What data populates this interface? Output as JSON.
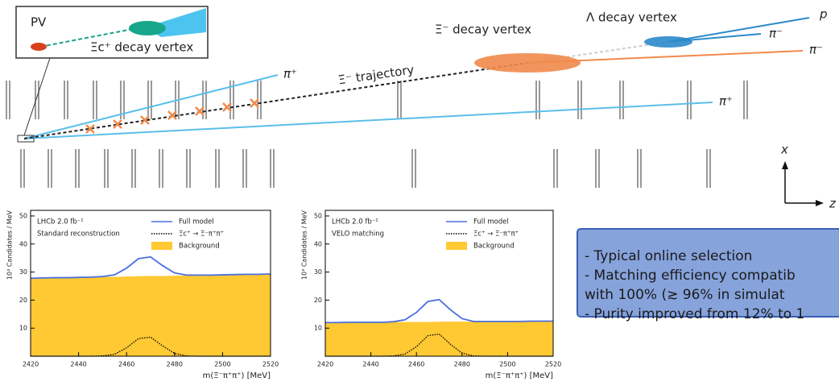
{
  "diagram": {
    "labels": {
      "pv": "PV",
      "xic_vertex": "Ξc⁺ decay vertex",
      "pi_plus_1": "π⁺",
      "pi_plus_2": "π⁺",
      "xi_trajectory": "Ξ⁻ trajectory",
      "xi_vertex": "Ξ⁻ decay vertex",
      "lambda_vertex": "Λ decay vertex",
      "proton": "p",
      "pi_minus_1": "π⁻",
      "pi_minus_2": "π⁻",
      "axis_x": "x",
      "axis_z": "z"
    }
  },
  "chart_data": [
    {
      "type": "line",
      "annotation": [
        "LHCb 2.0 fb⁻¹",
        "Standard reconstruction"
      ],
      "x_label": "m(Ξ⁻π⁺π⁺) [MeV]",
      "y_label": "10³ Candidates / MeV",
      "x": [
        2420,
        2425,
        2430,
        2435,
        2440,
        2445,
        2450,
        2455,
        2460,
        2465,
        2470,
        2475,
        2480,
        2485,
        2490,
        2495,
        2500,
        2505,
        2510,
        2515,
        2520
      ],
      "series": [
        {
          "name": "Background",
          "color": "#ffc933",
          "style": "area",
          "values": [
            27.8,
            27.9,
            28.0,
            28.0,
            28.1,
            28.2,
            28.3,
            28.3,
            28.4,
            28.5,
            28.6,
            28.6,
            28.7,
            28.8,
            28.9,
            28.9,
            29.0,
            29.1,
            29.2,
            29.2,
            29.3
          ]
        },
        {
          "name": "Ξc⁺ → Ξ⁻π⁺π⁺",
          "color": "#000000",
          "style": "dotted",
          "values": [
            0,
            0,
            0,
            0,
            0,
            0,
            0.1,
            0.7,
            3.0,
            6.3,
            6.8,
            3.7,
            1.0,
            0.1,
            0,
            0,
            0,
            0,
            0,
            0,
            0
          ]
        },
        {
          "name": "Full model",
          "color": "#4a6fe0",
          "style": "line",
          "values": [
            27.8,
            27.9,
            28.0,
            28.0,
            28.1,
            28.2,
            28.4,
            29.0,
            31.4,
            34.8,
            35.4,
            32.3,
            29.7,
            28.9,
            28.9,
            28.9,
            29.0,
            29.1,
            29.2,
            29.2,
            29.3
          ]
        }
      ],
      "legend_order": [
        2,
        1,
        0
      ],
      "xlim": [
        2420,
        2520
      ],
      "xticks": [
        2420,
        2440,
        2460,
        2480,
        2500,
        2520
      ],
      "ylim": [
        0,
        52
      ],
      "yticks": [
        10,
        20,
        30,
        40,
        50
      ]
    },
    {
      "type": "line",
      "annotation": [
        "LHCb 2.0 fb⁻¹",
        "VELO matching"
      ],
      "x_label": "m(Ξ⁻π⁺π⁺) [MeV]",
      "y_label": "10³ Candidates / MeV",
      "x": [
        2420,
        2425,
        2430,
        2435,
        2440,
        2445,
        2450,
        2455,
        2460,
        2465,
        2470,
        2475,
        2480,
        2485,
        2490,
        2495,
        2500,
        2505,
        2510,
        2515,
        2520
      ],
      "series": [
        {
          "name": "Background",
          "color": "#ffc933",
          "style": "area",
          "values": [
            12.0,
            12.0,
            12.1,
            12.1,
            12.1,
            12.1,
            12.2,
            12.2,
            12.2,
            12.2,
            12.3,
            12.3,
            12.3,
            12.3,
            12.4,
            12.4,
            12.4,
            12.4,
            12.5,
            12.5,
            12.5
          ]
        },
        {
          "name": "Ξc⁺ → Ξ⁻π⁺π⁺",
          "color": "#000000",
          "style": "dotted",
          "values": [
            0,
            0,
            0,
            0,
            0,
            0,
            0.1,
            0.8,
            3.4,
            7.3,
            7.9,
            4.2,
            1.1,
            0.1,
            0,
            0,
            0,
            0,
            0,
            0,
            0
          ]
        },
        {
          "name": "Full model",
          "color": "#4a6fe0",
          "style": "line",
          "values": [
            12.0,
            12.0,
            12.1,
            12.1,
            12.1,
            12.1,
            12.3,
            13.0,
            15.6,
            19.5,
            20.2,
            16.5,
            13.4,
            12.4,
            12.4,
            12.4,
            12.4,
            12.4,
            12.5,
            12.5,
            12.5
          ]
        }
      ],
      "legend_order": [
        2,
        1,
        0
      ],
      "xlim": [
        2420,
        2520
      ],
      "xticks": [
        2420,
        2440,
        2460,
        2480,
        2500,
        2520
      ],
      "ylim": [
        0,
        52
      ],
      "yticks": [
        10,
        20,
        30,
        40,
        50
      ]
    }
  ],
  "textbox": {
    "lines": [
      "- Typical online selection",
      "- Matching efficiency compatib",
      "  with 100% (≳ 96% in simulat",
      "- Purity improved from 12% to 1"
    ]
  }
}
